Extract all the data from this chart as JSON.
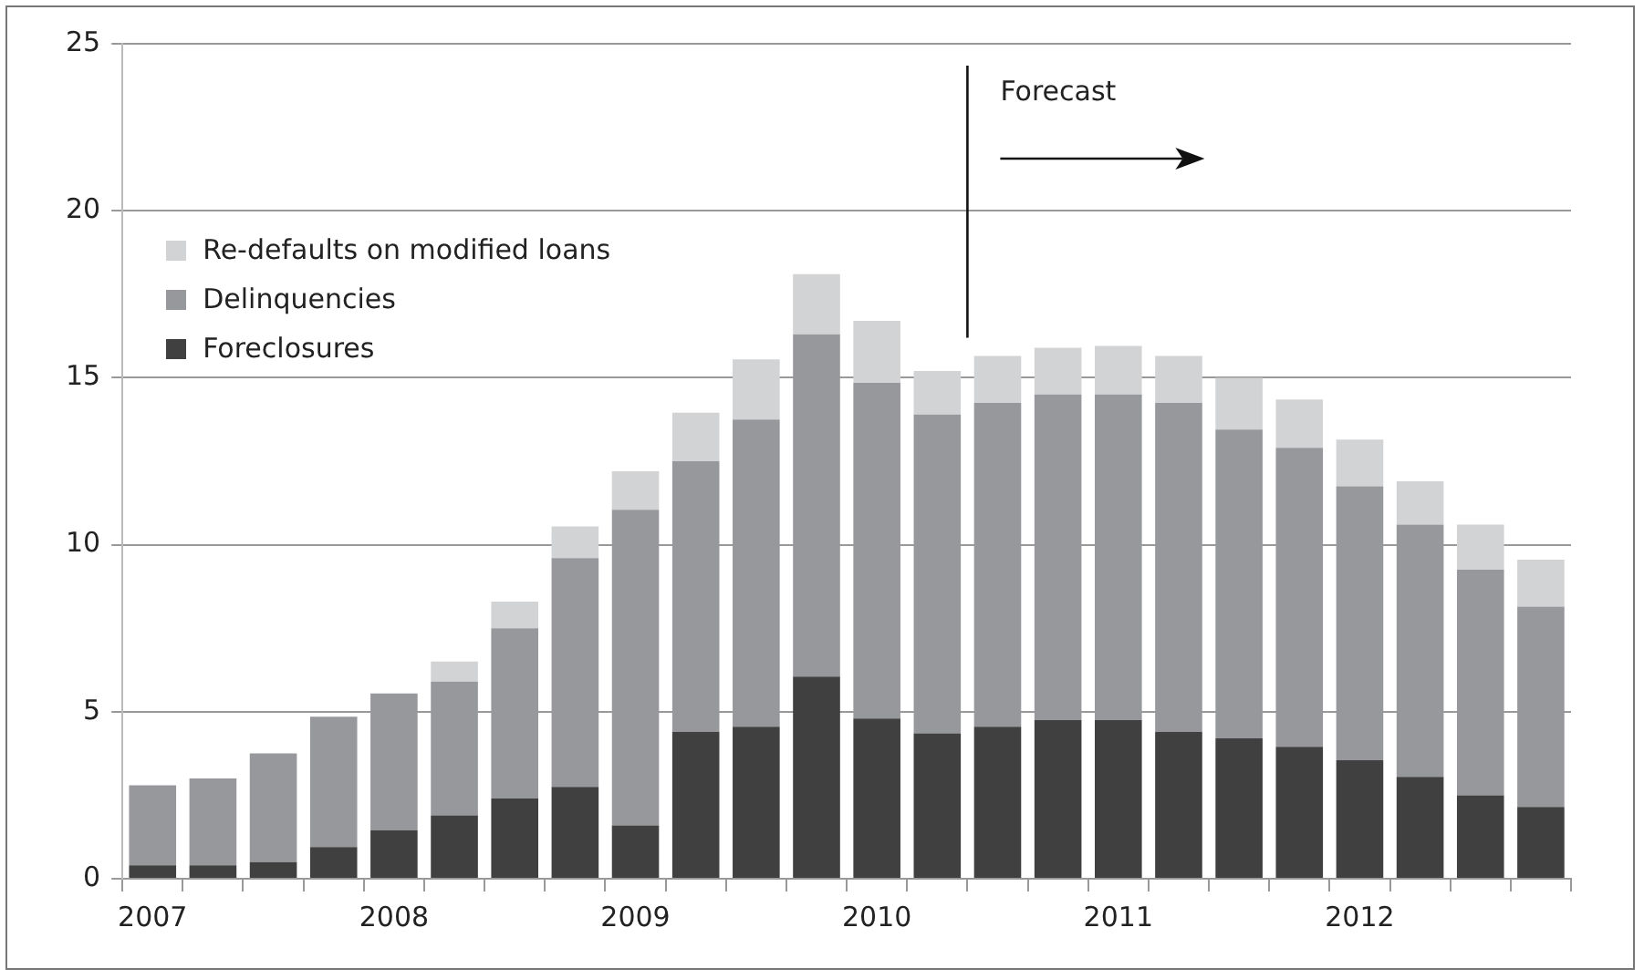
{
  "chart_data": {
    "type": "bar",
    "stacked": true,
    "categories": [
      "2007",
      null,
      null,
      null,
      "2008",
      null,
      null,
      null,
      "2009",
      null,
      null,
      null,
      "2010",
      null,
      null,
      null,
      "2011",
      null,
      null,
      null,
      "2012",
      null,
      null,
      null
    ],
    "series": [
      {
        "name": "Foreclosures",
        "color": "#404040",
        "values": [
          0.4,
          0.4,
          0.5,
          0.95,
          1.45,
          1.9,
          2.4,
          2.75,
          1.6,
          4.4,
          4.55,
          6.05,
          4.8,
          4.35,
          4.55,
          4.75,
          4.75,
          4.4,
          4.2,
          3.95,
          3.55,
          3.05,
          2.5,
          2.15
        ]
      },
      {
        "name": "Delinquencies",
        "color": "#97989c",
        "values": [
          2.4,
          2.6,
          3.25,
          3.9,
          4.1,
          4.0,
          5.1,
          6.85,
          9.45,
          8.1,
          9.2,
          10.25,
          10.05,
          9.55,
          9.7,
          9.75,
          9.75,
          9.85,
          9.25,
          8.95,
          8.2,
          7.55,
          6.75,
          6.0
        ]
      },
      {
        "name": "Re-defaults on modified loans",
        "color": "#d2d3d5",
        "values": [
          null,
          null,
          null,
          null,
          null,
          0.6,
          0.8,
          0.95,
          1.15,
          1.45,
          1.8,
          1.8,
          1.85,
          1.3,
          1.4,
          1.4,
          1.45,
          1.4,
          1.55,
          1.45,
          1.4,
          1.3,
          1.35,
          1.4
        ]
      }
    ],
    "ylim": [
      0,
      25
    ],
    "yticks": [
      0,
      5,
      10,
      15,
      20,
      25
    ],
    "grid": "y",
    "legend": "top left",
    "annotations": [
      "Forecast"
    ]
  }
}
